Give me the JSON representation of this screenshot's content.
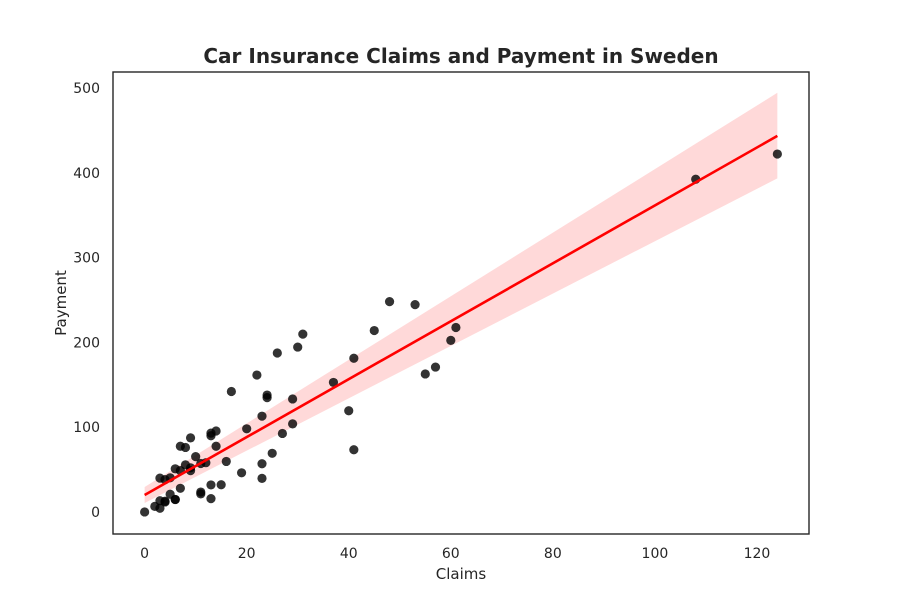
{
  "chart_data": {
    "type": "scatter",
    "title": "Car Insurance Claims and Payment in Sweden",
    "xlabel": "Claims",
    "ylabel": "Payment",
    "xlim": [
      -6.2,
      130.2
    ],
    "ylim": [
      -26,
      519
    ],
    "xticks": [
      0,
      20,
      40,
      60,
      80,
      100,
      120
    ],
    "yticks": [
      0,
      100,
      200,
      300,
      400,
      500
    ],
    "grid": false,
    "colors": {
      "points": "#000000",
      "fit_line": "#ff0000",
      "ci_band": "#ff0000"
    },
    "points": {
      "x": [
        108,
        19,
        13,
        124,
        40,
        57,
        23,
        14,
        45,
        10,
        5,
        48,
        11,
        23,
        7,
        2,
        24,
        6,
        3,
        23,
        6,
        9,
        9,
        3,
        29,
        7,
        4,
        20,
        7,
        4,
        0,
        25,
        6,
        5,
        22,
        11,
        61,
        12,
        4,
        16,
        13,
        60,
        41,
        37,
        55,
        41,
        11,
        27,
        8,
        3,
        17,
        13,
        13,
        15,
        8,
        29,
        30,
        24,
        9,
        31,
        14,
        53,
        26
      ],
      "y": [
        392.5,
        46.2,
        15.7,
        422.2,
        119.4,
        170.9,
        56.9,
        77.5,
        214.0,
        65.3,
        20.9,
        248.1,
        23.5,
        39.6,
        48.8,
        6.6,
        134.9,
        50.9,
        4.4,
        113.0,
        14.8,
        48.7,
        52.1,
        13.2,
        103.9,
        77.5,
        11.8,
        98.1,
        27.9,
        38.1,
        0.0,
        69.2,
        14.6,
        40.3,
        161.5,
        57.2,
        217.6,
        58.1,
        12.6,
        59.6,
        89.9,
        202.4,
        181.3,
        152.8,
        162.8,
        73.4,
        21.3,
        92.6,
        76.1,
        39.9,
        142.1,
        93.0,
        31.9,
        32.1,
        55.6,
        133.3,
        194.5,
        137.9,
        87.4,
        209.8,
        95.5,
        244.6,
        187.5
      ]
    },
    "regression": {
      "x": [
        0,
        124
      ],
      "y": [
        19.99,
        443.61
      ],
      "ci_low": [
        10.5,
        393.5
      ],
      "ci_high": [
        29.5,
        494.5
      ]
    }
  }
}
